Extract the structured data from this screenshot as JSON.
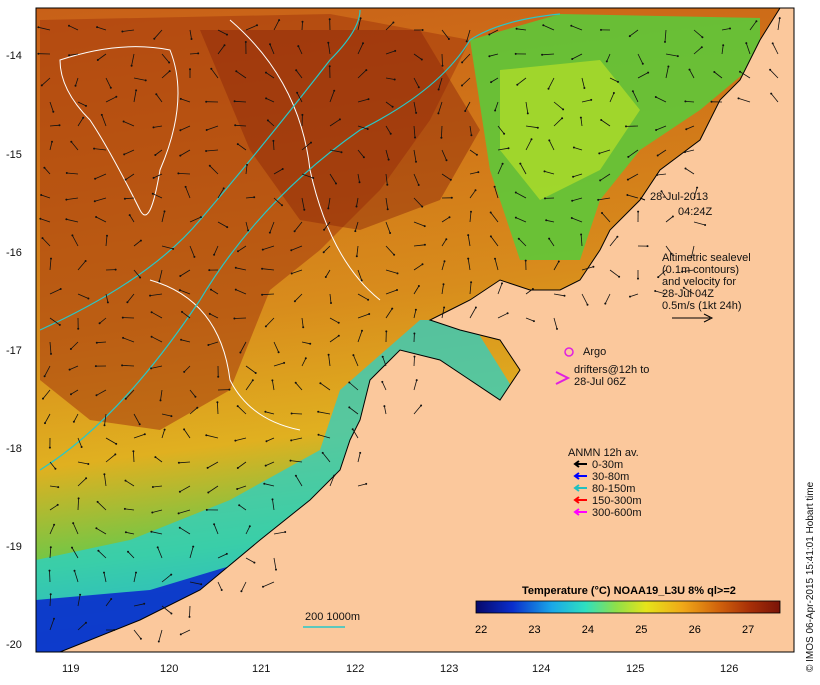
{
  "map": {
    "y_ticks": [
      "-14",
      "-15",
      "-16",
      "-17",
      "-18",
      "-19",
      "-20"
    ],
    "x_ticks": [
      "119",
      "120",
      "121",
      "122",
      "123",
      "124",
      "125",
      "126"
    ]
  },
  "annotation": {
    "date_line1": "28-Jul-2013",
    "date_line2": "04:24Z",
    "altimetry": [
      "Altimetric sealevel",
      "(0.1m contours)",
      "and velocity for",
      "28-Jul 04Z",
      "0.5m/s (1kt 24h)"
    ],
    "argo": "Argo",
    "drifters_line1": "drifters@12h to",
    "drifters_line2": "28-Jul 06Z"
  },
  "legend": {
    "title": "ANMN 12h av.",
    "items": [
      {
        "label": "0-30m",
        "color": "#000000"
      },
      {
        "label": "30-80m",
        "color": "#0000ff"
      },
      {
        "label": "80-150m",
        "color": "#20c0c0"
      },
      {
        "label": "150-300m",
        "color": "#ff0000"
      },
      {
        "label": "300-600m",
        "color": "#ff00ff"
      }
    ]
  },
  "colorbar": {
    "title": "Temperature (°C) NOAA19_L3U 8% ql>=2",
    "ticks": [
      "22",
      "23",
      "24",
      "25",
      "26",
      "27"
    ],
    "colors": [
      "#06086a",
      "#0a2ecc",
      "#1aa8e8",
      "#2ee0c0",
      "#8ee04a",
      "#e6e41a",
      "#f0a818",
      "#d0620c",
      "#a83008",
      "#7a1408"
    ]
  },
  "depth_legend": "200 1000m",
  "footer": "© IMOS 06-Apr-2015 15:41:01 Hobart time"
}
